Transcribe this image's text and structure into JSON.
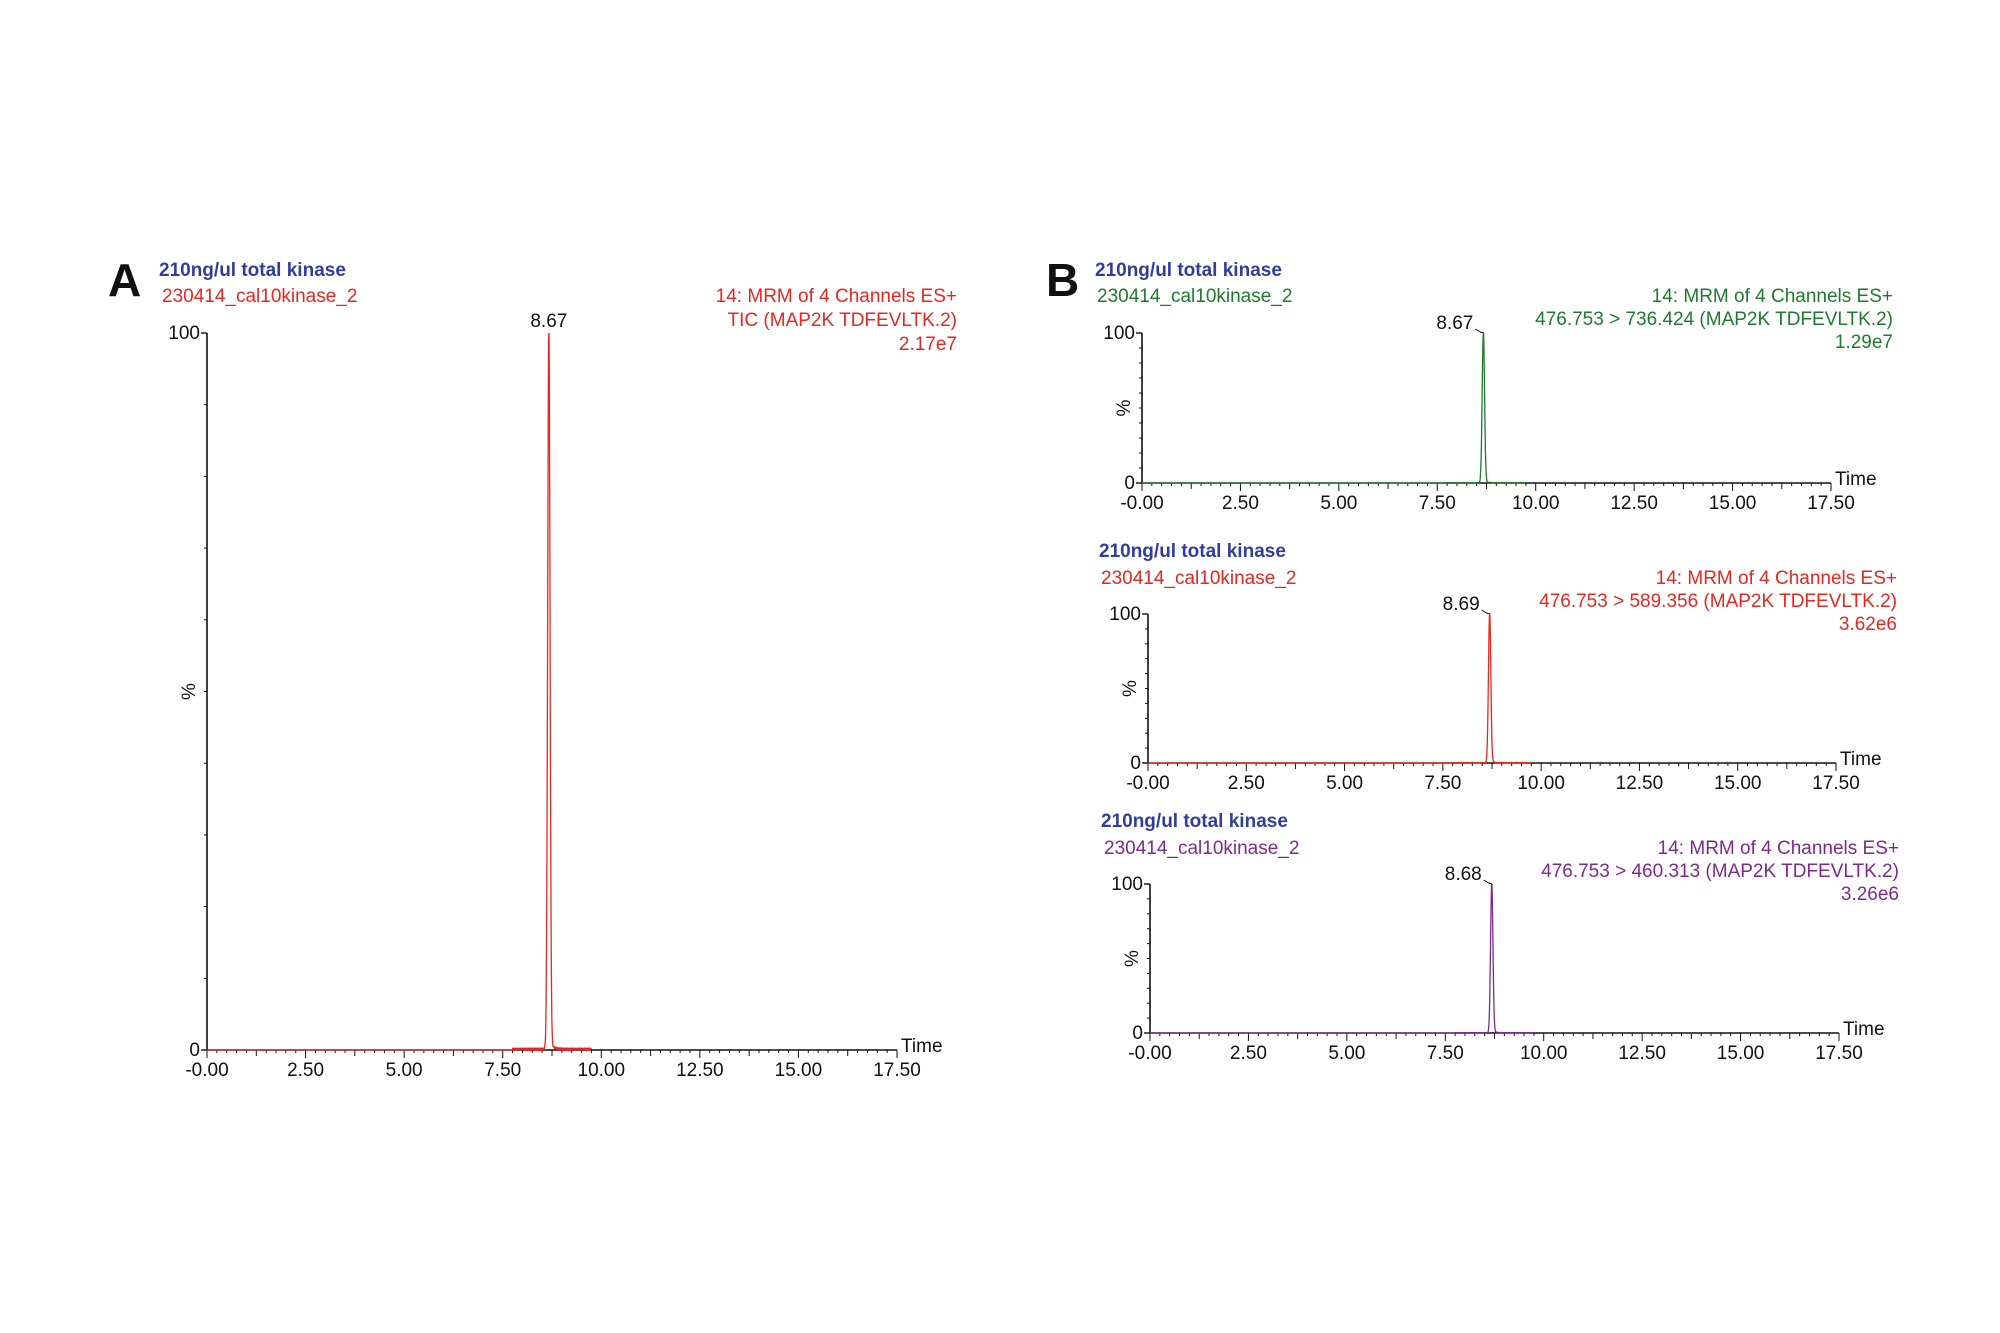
{
  "panels": [
    {
      "letter": "A"
    },
    {
      "letter": "B"
    }
  ],
  "chart_data": [
    {
      "type": "line",
      "panel": "A",
      "title": "210ng/ul total kinase",
      "title_color": "#2f3e9e",
      "sample": "230414_cal10kinase_2",
      "header": [
        "14: MRM of 4 Channels ES+",
        "TIC (MAP2K TDFEVLTK.2)",
        "2.17e7"
      ],
      "color": "#e8261f",
      "xlabel": "Time",
      "ylabel": "%",
      "xlim": [
        0,
        17.5
      ],
      "ylim": [
        0,
        100
      ],
      "xticks": [
        "-0.00",
        "2.50",
        "5.00",
        "7.50",
        "10.00",
        "12.50",
        "15.00",
        "17.50"
      ],
      "yticks": [
        "0",
        "100"
      ],
      "peak": {
        "rt": 8.67,
        "label": "8.67",
        "intensity": 100
      }
    },
    {
      "type": "line",
      "panel": "B",
      "title": "210ng/ul total kinase",
      "title_color": "#2f3e9e",
      "sample": "230414_cal10kinase_2",
      "header": [
        "14: MRM of 4 Channels ES+",
        "476.753 > 736.424 (MAP2K TDFEVLTK.2)",
        "1.29e7"
      ],
      "color": "#1e7b2c",
      "xlabel": "Time",
      "ylabel": "%",
      "xlim": [
        0,
        17.5
      ],
      "ylim": [
        0,
        100
      ],
      "xticks": [
        "-0.00",
        "2.50",
        "5.00",
        "7.50",
        "10.00",
        "12.50",
        "15.00",
        "17.50"
      ],
      "yticks": [
        "0",
        "100"
      ],
      "peak": {
        "rt": 8.67,
        "label": "8.67",
        "intensity": 100
      }
    },
    {
      "type": "line",
      "panel": "B",
      "title": "210ng/ul total kinase",
      "title_color": "#2f3e9e",
      "sample": "230414_cal10kinase_2",
      "header": [
        "14: MRM of 4 Channels ES+",
        "476.753 > 589.356 (MAP2K TDFEVLTK.2)",
        "3.62e6"
      ],
      "color": "#e8261f",
      "xlabel": "Time",
      "ylabel": "%",
      "xlim": [
        0,
        17.5
      ],
      "ylim": [
        0,
        100
      ],
      "xticks": [
        "-0.00",
        "2.50",
        "5.00",
        "7.50",
        "10.00",
        "12.50",
        "15.00",
        "17.50"
      ],
      "yticks": [
        "0",
        "100"
      ],
      "peak": {
        "rt": 8.69,
        "label": "8.69",
        "intensity": 100
      }
    },
    {
      "type": "line",
      "panel": "B",
      "title": "210ng/ul total kinase",
      "title_color": "#2f3e9e",
      "sample": "230414_cal10kinase_2",
      "header": [
        "14: MRM of 4 Channels ES+",
        "476.753 > 460.313 (MAP2K TDFEVLTK.2)",
        "3.26e6"
      ],
      "color": "#7d2a8c",
      "xlabel": "Time",
      "ylabel": "%",
      "xlim": [
        0,
        17.5
      ],
      "ylim": [
        0,
        100
      ],
      "xticks": [
        "-0.00",
        "2.50",
        "5.00",
        "7.50",
        "10.00",
        "12.50",
        "15.00",
        "17.50"
      ],
      "yticks": [
        "0",
        "100"
      ],
      "peak": {
        "rt": 8.68,
        "label": "8.68",
        "intensity": 100
      }
    }
  ]
}
